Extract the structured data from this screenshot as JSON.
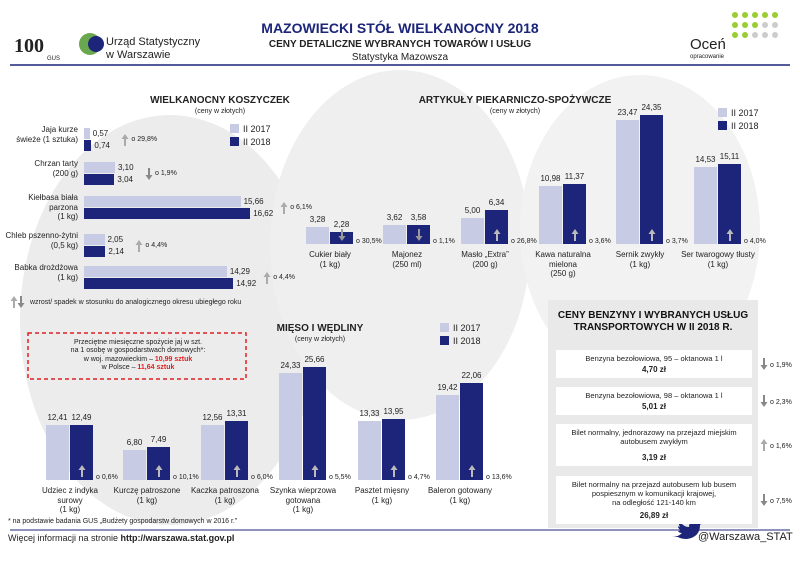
{
  "header": {
    "logo_number": "100",
    "logo_sub": "GUS",
    "office": "Urząd Statystyczny\nw Warszawie",
    "title": "MAZOWIECKI STÓŁ WIELKANOCNY 2018",
    "subtitle": "CENY DETALICZNE WYBRANYCH TOWARÓW I USŁUG",
    "series_name": "Statystyka Mazowsza",
    "rate": "Oceń",
    "rate_sub": "opracowanie"
  },
  "chart_data": [
    {
      "type": "bar",
      "orientation": "horizontal",
      "title": "WIELKANOCNY KOSZYCZEK",
      "subtitle": "(ceny w złotych)",
      "categories": [
        "Jaja kurze\nświeże (1 sztuka)",
        "Chrzan tarty\n(200 g)",
        "Kiełbasa biała\nparzona\n(1 kg)",
        "Chleb pszenno-żytni\n(0,5 kg)",
        "Babka drożdżowa\n(1 kg)"
      ],
      "series": [
        {
          "name": "II 2017",
          "color": "#c8cbe4",
          "values": [
            0.57,
            3.1,
            15.66,
            2.05,
            14.29
          ],
          "value_labels": [
            "0,57",
            "3,10",
            "15,66",
            "2,05",
            "14,29"
          ]
        },
        {
          "name": "II 2018",
          "color": "#1c2579",
          "values": [
            0.74,
            3.04,
            16.62,
            2.14,
            14.92
          ],
          "value_labels": [
            "0,74",
            "3,04",
            "16,62",
            "2,14",
            "14,92"
          ]
        }
      ],
      "changes": [
        "o 29,8%",
        "o 1,9%",
        "o 6,1%",
        "o 4,4%",
        "o 4,4%"
      ],
      "change_directions": [
        "up",
        "down",
        "up",
        "up",
        "up"
      ],
      "note": "wzrost/ spadek w stosunku do analogicznego okresu ubiegłego roku"
    },
    {
      "type": "bar",
      "orientation": "vertical",
      "title": "ARTYKUŁY PIEKARNICZO-SPOŻYWCZE",
      "subtitle": "(ceny w złotych)",
      "categories": [
        "Cukier biały\n(1 kg)",
        "Majonez\n(250 ml)",
        "Masło „Extra”\n(200 g)",
        "Kawa naturalna\nmielona\n(250 g)",
        "Sernik zwykły\n(1 kg)",
        "Ser twarogowy tłusty\n(1 kg)"
      ],
      "series": [
        {
          "name": "II 2017",
          "color": "#c8cbe4",
          "values": [
            3.28,
            3.62,
            5.0,
            10.98,
            23.47,
            14.53
          ],
          "value_labels": [
            "3,28",
            "3,62",
            "5,00",
            "10,98",
            "23,47",
            "14,53"
          ]
        },
        {
          "name": "II 2018",
          "color": "#1c2579",
          "values": [
            2.28,
            3.58,
            6.34,
            11.37,
            24.35,
            15.11
          ],
          "value_labels": [
            "2,28",
            "3,58",
            "6,34",
            "11,37",
            "24,35",
            "15,11"
          ]
        }
      ],
      "changes": [
        "o 30,5%",
        "o 1,1%",
        "o 26,8%",
        "o 3,6%",
        "o 3,7%",
        "o 4,0%"
      ],
      "change_directions": [
        "down",
        "down",
        "up",
        "up",
        "up",
        "up"
      ]
    },
    {
      "type": "bar",
      "orientation": "vertical",
      "title": "MIĘSO I WĘDLINY",
      "subtitle": "(ceny w złotych)",
      "categories": [
        "Udziec z indyka\nsurowy\n(1 kg)",
        "Kurczę patroszone\n(1 kg)",
        "Kaczka patroszona\n(1 kg)",
        "Szynka wieprzowa\ngotowana\n(1 kg)",
        "Pasztet mięsny\n(1 kg)",
        "Baleron gotowany\n(1 kg)"
      ],
      "series": [
        {
          "name": "II 2017",
          "color": "#c8cbe4",
          "values": [
            12.41,
            6.8,
            12.56,
            24.33,
            13.33,
            19.42
          ],
          "value_labels": [
            "12,41",
            "6,80",
            "12,56",
            "24,33",
            "13,33",
            "19,42"
          ]
        },
        {
          "name": "II 2018",
          "color": "#1c2579",
          "values": [
            12.49,
            7.49,
            13.31,
            25.66,
            13.95,
            22.06
          ],
          "value_labels": [
            "12,49",
            "7,49",
            "13,31",
            "25,66",
            "13,95",
            "22,06"
          ]
        }
      ],
      "changes": [
        "o 0,6%",
        "o 10,1%",
        "o 6,0%",
        "o 5,5%",
        "o 4,7%",
        "o 13,6%"
      ],
      "change_directions": [
        "up",
        "up",
        "up",
        "up",
        "up",
        "up"
      ]
    }
  ],
  "eggs_box": {
    "intro": "Przeciętne miesięczne spożycie jaj w szt.\nna 1 osobę w gospodarstwach domowych*:",
    "line1": "w woj. mazowieckim – ",
    "value1": "10,99 sztuk",
    "line2": "w Polsce – ",
    "value2": "11,64 sztuk"
  },
  "transport": {
    "title": "CENY BENZYNY I WYBRANYCH USŁUG\nTRANSPORTOWYCH W  II 2018 R.",
    "items": [
      {
        "name": "Benzyna bezołowiowa, 95 – oktanowa 1 l",
        "price": "4,70 zł",
        "change": "o 1,9%",
        "direction": "down"
      },
      {
        "name": "Benzyna bezołowiowa,  98 – oktanowa 1 l",
        "price": "5,01 zł",
        "change": "o 2,3%",
        "direction": "down"
      },
      {
        "name": "Bilet normalny, jednorazowy na przejazd miejskim\nautobusem zwykłym",
        "price": "3,19 zł",
        "change": "o 1,6%",
        "direction": "up"
      },
      {
        "name": "Bilet normalny na przejazd autobusem lub busem\npospiesznym w komunikacji krajowej,\nna odległość 121-140 km",
        "price": "26,89 zł",
        "change": "o 7,5%",
        "direction": "down"
      }
    ]
  },
  "footer": {
    "footnote": "* na podstawie badania GUS „Budżety gospodarstw domowych w 2016 r.”",
    "more": "Więcej informacji na stronie ",
    "url": "http://warszawa.stat.gov.pl",
    "twitter": "@Warszawa_STAT"
  }
}
